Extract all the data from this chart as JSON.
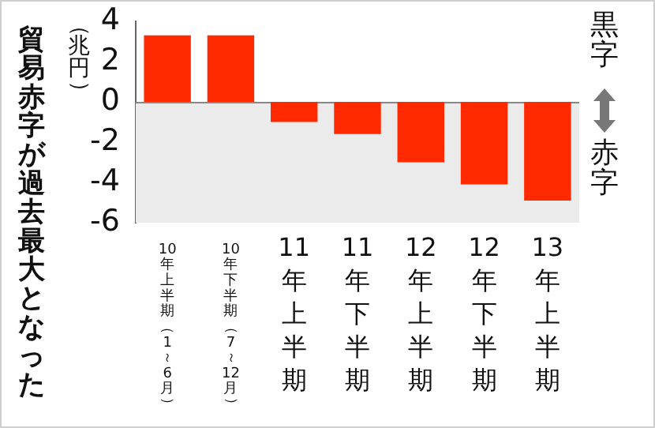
{
  "chart_data": {
    "type": "bar",
    "title": "貿易赤字が過去最大となった",
    "ylabel": "（兆円）",
    "categories": [
      "10年上半期（1～6月）",
      "10年下半期（7～12月）",
      "11年上半期",
      "11年下半期",
      "12年上半期",
      "12年下半期",
      "13年上半期"
    ],
    "values": [
      3.3,
      3.3,
      -1.0,
      -1.6,
      -3.0,
      -4.1,
      -4.9
    ],
    "color": "#ff2a00",
    "ylim": [
      -6,
      4
    ],
    "yticks": [
      -6,
      -4,
      -2,
      0,
      2,
      4
    ],
    "bands": [
      {
        "axis": "y",
        "from": 0,
        "to": -6,
        "color": "#ebebeb"
      }
    ],
    "ref_lines": [
      {
        "axis": "y",
        "value": 0,
        "color": "#888888"
      }
    ],
    "annotations": [
      "黒字",
      "赤字"
    ],
    "grid": false,
    "legend": false
  }
}
